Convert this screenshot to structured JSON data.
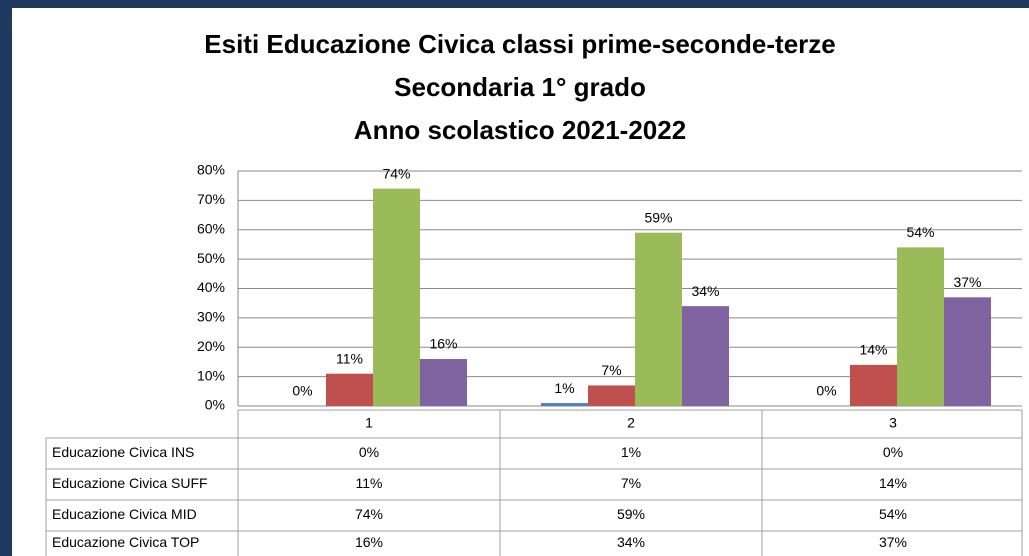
{
  "chart_data": {
    "type": "bar",
    "title": "Esiti Educazione Civica classi prime-seconde-terze",
    "subtitle": [
      "Secondaria 1° grado",
      "Anno scolastico 2021-2022"
    ],
    "categories": [
      "1",
      "2",
      "3"
    ],
    "series": [
      {
        "name": "Educazione Civica INS",
        "color": "#4f81bd",
        "values": [
          0,
          1,
          0
        ],
        "value_labels": [
          "0%",
          "1%",
          "0%"
        ]
      },
      {
        "name": "Educazione Civica SUFF",
        "color": "#c0504d",
        "values": [
          11,
          7,
          14
        ],
        "value_labels": [
          "11%",
          "7%",
          "14%"
        ]
      },
      {
        "name": "Educazione Civica MID",
        "color": "#9bbb59",
        "values": [
          74,
          59,
          54
        ],
        "value_labels": [
          "74%",
          "59%",
          "54%"
        ]
      },
      {
        "name": "Educazione Civica TOP",
        "color": "#8064a2",
        "values": [
          16,
          34,
          37
        ],
        "value_labels": [
          "16%",
          "34%",
          "37%"
        ]
      }
    ],
    "ylim": [
      0,
      80
    ],
    "yticks": [
      {
        "value": 0,
        "label": "0%"
      },
      {
        "value": 10,
        "label": "10%"
      },
      {
        "value": 20,
        "label": "20%"
      },
      {
        "value": 30,
        "label": "30%"
      },
      {
        "value": 40,
        "label": "40%"
      },
      {
        "value": 50,
        "label": "50%"
      },
      {
        "value": 60,
        "label": "60%"
      },
      {
        "value": 70,
        "label": "70%"
      },
      {
        "value": 80,
        "label": "80%"
      }
    ],
    "grid": true
  }
}
